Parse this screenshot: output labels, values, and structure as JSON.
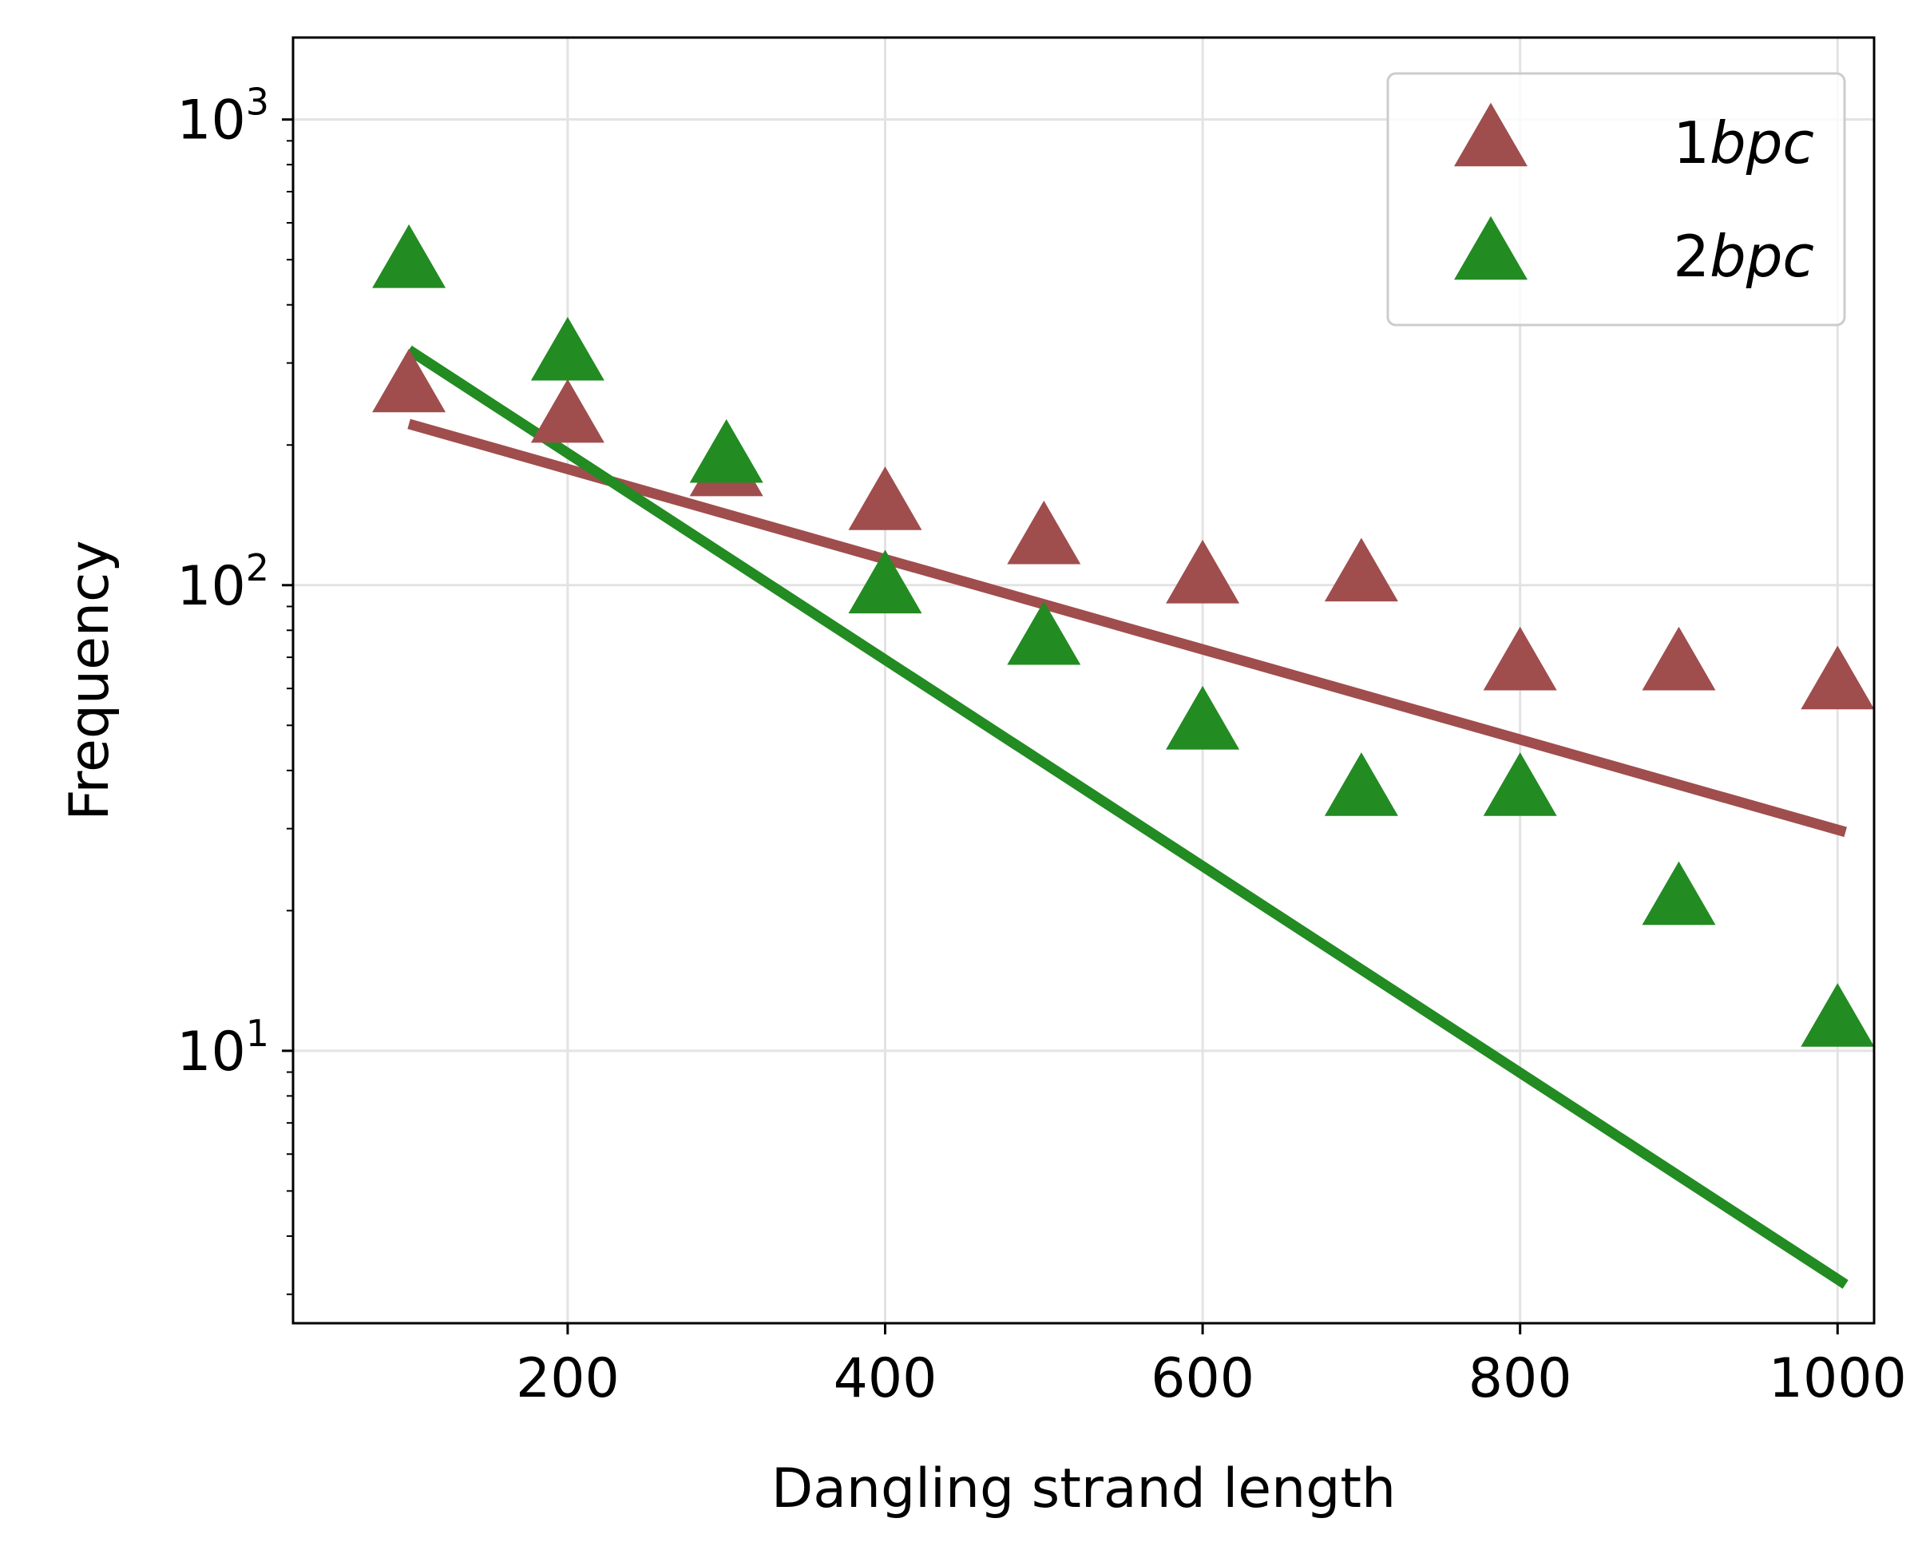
{
  "chart_data": {
    "type": "scatter",
    "title": "",
    "xlabel": "Dangling strand length",
    "ylabel": "Frequency",
    "xlim": [
      27,
      1023
    ],
    "ylim": [
      2.6,
      1500
    ],
    "yscale": "log",
    "grid": true,
    "x_ticks": [
      200,
      400,
      600,
      800,
      1000
    ],
    "x_tick_labels": [
      "200",
      "400",
      "600",
      "800",
      "1000"
    ],
    "y_ticks": [
      10,
      100,
      1000
    ],
    "y_tick_labels": [
      {
        "base": "10",
        "exp": "1"
      },
      {
        "base": "10",
        "exp": "2"
      },
      {
        "base": "10",
        "exp": "3"
      }
    ],
    "legend_position": "top-right",
    "series": [
      {
        "name": "1bpc",
        "name_prefix": "1",
        "name_italic": "bpc",
        "color": "#a04d4d",
        "marker": "triangle-up",
        "points": [
          {
            "x": 100,
            "y": 265
          },
          {
            "x": 200,
            "y": 228
          },
          {
            "x": 300,
            "y": 175
          },
          {
            "x": 400,
            "y": 148
          },
          {
            "x": 500,
            "y": 125
          },
          {
            "x": 600,
            "y": 103
          },
          {
            "x": 700,
            "y": 104
          },
          {
            "x": 800,
            "y": 67
          },
          {
            "x": 900,
            "y": 67
          },
          {
            "x": 1000,
            "y": 61
          }
        ],
        "fit_line": {
          "x": [
            100,
            1005
          ],
          "y": [
            222,
            29.5
          ]
        }
      },
      {
        "name": "2bpc",
        "name_prefix": "2",
        "name_italic": "bpc",
        "color": "#228b22",
        "marker": "triangle-up",
        "points": [
          {
            "x": 100,
            "y": 490
          },
          {
            "x": 200,
            "y": 310
          },
          {
            "x": 300,
            "y": 187
          },
          {
            "x": 400,
            "y": 98
          },
          {
            "x": 500,
            "y": 76
          },
          {
            "x": 600,
            "y": 50
          },
          {
            "x": 700,
            "y": 36
          },
          {
            "x": 800,
            "y": 36
          },
          {
            "x": 900,
            "y": 21
          },
          {
            "x": 1000,
            "y": 11.5
          }
        ],
        "fit_line": {
          "x": [
            100,
            1005
          ],
          "y": [
            320,
            3.15
          ]
        }
      }
    ]
  }
}
